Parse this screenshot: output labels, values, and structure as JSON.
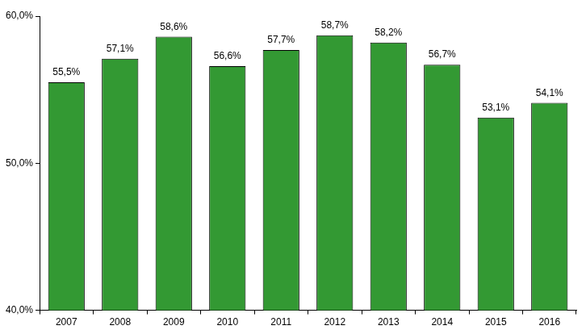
{
  "chart_data": {
    "type": "bar",
    "categories": [
      "2007",
      "2008",
      "2009",
      "2010",
      "2011",
      "2012",
      "2013",
      "2014",
      "2015",
      "2016"
    ],
    "values": [
      55.5,
      57.1,
      58.6,
      56.6,
      57.7,
      58.7,
      58.2,
      56.7,
      53.1,
      54.1
    ],
    "value_labels": [
      "55,5%",
      "57,1%",
      "58,6%",
      "56,6%",
      "57,7%",
      "58,7%",
      "58,2%",
      "56,7%",
      "53,1%",
      "54,1%"
    ],
    "color": "#339933",
    "ylim": [
      40,
      60
    ],
    "yticks": [
      {
        "value": 40,
        "label": "40,0%"
      },
      {
        "value": 50,
        "label": "50,0%"
      },
      {
        "value": 60,
        "label": "60,0%"
      }
    ],
    "grid": false,
    "data_labels": true
  }
}
